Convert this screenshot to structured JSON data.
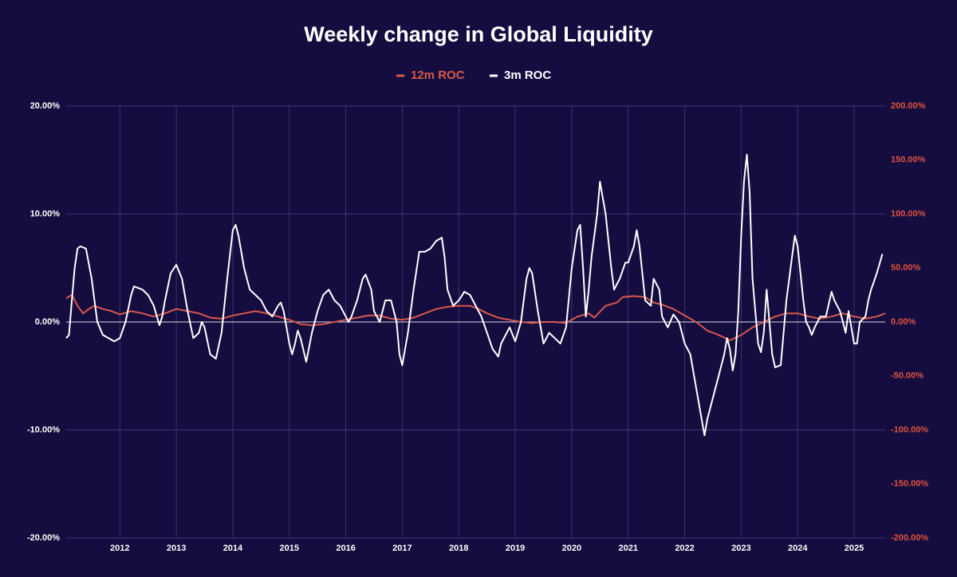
{
  "chart_data": {
    "type": "line",
    "title": "Weekly change in Global Liquidity",
    "background": "#150d3f",
    "grid": true,
    "legend": "top",
    "xlim": [
      2011.05,
      2025.55
    ],
    "xticks": [
      2012,
      2013,
      2014,
      2015,
      2016,
      2017,
      2018,
      2019,
      2020,
      2021,
      2022,
      2023,
      2024,
      2025
    ],
    "ylim": [
      -20,
      20
    ],
    "yticks": [
      {
        "value": -20,
        "label": "-20.00%"
      },
      {
        "value": -10,
        "label": "-10.00%"
      },
      {
        "value": 0,
        "label": "0.00%"
      },
      {
        "value": 10,
        "label": "10.00%"
      },
      {
        "value": 20,
        "label": "20.00%"
      }
    ],
    "y2lim": [
      -200,
      200
    ],
    "y2ticks": [
      {
        "value": -200,
        "label": "-200.00%"
      },
      {
        "value": -150,
        "label": "-150.00%"
      },
      {
        "value": -100,
        "label": "-100.00%"
      },
      {
        "value": -50,
        "label": "-50.00%"
      },
      {
        "value": 0,
        "label": "0.00%"
      },
      {
        "value": 50,
        "label": "50.00%"
      },
      {
        "value": 100,
        "label": "100.00%"
      },
      {
        "value": 150,
        "label": "150.00%"
      },
      {
        "value": 200,
        "label": "200.00%"
      }
    ],
    "y2color": "#e0533f",
    "series": [
      {
        "name": "12m ROC",
        "color": "#d9574b",
        "axis": "y2",
        "x": [
          2011.05,
          2011.15,
          2011.25,
          2011.35,
          2011.45,
          2011.55,
          2011.7,
          2011.85,
          2012.0,
          2012.2,
          2012.4,
          2012.6,
          2012.8,
          2013.0,
          2013.2,
          2013.4,
          2013.6,
          2013.8,
          2014.0,
          2014.2,
          2014.4,
          2014.6,
          2014.8,
          2015.0,
          2015.2,
          2015.4,
          2015.6,
          2015.8,
          2016.0,
          2016.2,
          2016.4,
          2016.6,
          2016.8,
          2017.0,
          2017.2,
          2017.4,
          2017.6,
          2017.8,
          2018.0,
          2018.2,
          2018.35,
          2018.5,
          2018.7,
          2018.9,
          2019.1,
          2019.3,
          2019.5,
          2019.7,
          2019.9,
          2020.1,
          2020.3,
          2020.4,
          2020.6,
          2020.8,
          2020.9,
          2021.1,
          2021.3,
          2021.45,
          2021.6,
          2021.8,
          2022.0,
          2022.2,
          2022.4,
          2022.6,
          2022.8,
          2023.0,
          2023.2,
          2023.4,
          2023.6,
          2023.8,
          2024.0,
          2024.2,
          2024.4,
          2024.6,
          2024.8,
          2025.0,
          2025.2,
          2025.4,
          2025.55
        ],
        "values": [
          22,
          25,
          15,
          8,
          12,
          15,
          12,
          10,
          7,
          10,
          8,
          5,
          8,
          12,
          10,
          8,
          4,
          3,
          6,
          8,
          10,
          8,
          5,
          2,
          -2,
          -3,
          -2,
          0,
          2,
          4,
          6,
          6,
          3,
          2,
          4,
          8,
          12,
          14,
          15,
          15,
          12,
          8,
          4,
          2,
          0,
          -1,
          0,
          0,
          -1,
          5,
          8,
          4,
          15,
          18,
          23,
          24,
          23,
          18,
          16,
          12,
          6,
          0,
          -8,
          -12,
          -17,
          -12,
          -5,
          0,
          5,
          8,
          8,
          5,
          3,
          5,
          8,
          5,
          3,
          5,
          8
        ]
      },
      {
        "name": "3m ROC",
        "color": "#ffffff",
        "x": [
          2011.05,
          2011.1,
          2011.15,
          2011.2,
          2011.25,
          2011.3,
          2011.4,
          2011.5,
          2011.6,
          2011.7,
          2011.8,
          2011.9,
          2012.0,
          2012.1,
          2012.2,
          2012.25,
          2012.4,
          2012.5,
          2012.6,
          2012.7,
          2012.75,
          2012.8,
          2012.9,
          2013.0,
          2013.1,
          2013.2,
          2013.3,
          2013.4,
          2013.45,
          2013.5,
          2013.6,
          2013.7,
          2013.8,
          2013.9,
          2014.0,
          2014.05,
          2014.1,
          2014.2,
          2014.3,
          2014.4,
          2014.5,
          2014.6,
          2014.7,
          2014.8,
          2014.85,
          2014.9,
          2015.0,
          2015.05,
          2015.1,
          2015.15,
          2015.2,
          2015.3,
          2015.4,
          2015.5,
          2015.6,
          2015.7,
          2015.8,
          2015.9,
          2016.0,
          2016.05,
          2016.1,
          2016.2,
          2016.3,
          2016.35,
          2016.45,
          2016.5,
          2016.6,
          2016.7,
          2016.8,
          2016.9,
          2016.95,
          2017.0,
          2017.1,
          2017.2,
          2017.3,
          2017.4,
          2017.5,
          2017.6,
          2017.7,
          2017.75,
          2017.8,
          2017.9,
          2018.0,
          2018.1,
          2018.2,
          2018.3,
          2018.4,
          2018.5,
          2018.6,
          2018.7,
          2018.75,
          2018.8,
          2018.9,
          2019.0,
          2019.1,
          2019.2,
          2019.25,
          2019.3,
          2019.4,
          2019.5,
          2019.6,
          2019.7,
          2019.8,
          2019.9,
          2020.0,
          2020.1,
          2020.15,
          2020.2,
          2020.25,
          2020.3,
          2020.35,
          2020.45,
          2020.5,
          2020.6,
          2020.7,
          2020.75,
          2020.85,
          2020.95,
          2021.0,
          2021.1,
          2021.15,
          2021.2,
          2021.3,
          2021.4,
          2021.45,
          2021.55,
          2021.6,
          2021.7,
          2021.8,
          2021.9,
          2022.0,
          2022.1,
          2022.2,
          2022.3,
          2022.35,
          2022.4,
          2022.5,
          2022.6,
          2022.7,
          2022.75,
          2022.8,
          2022.85,
          2022.9,
          2022.95,
          2023.0,
          2023.05,
          2023.1,
          2023.15,
          2023.2,
          2023.3,
          2023.35,
          2023.4,
          2023.45,
          2023.5,
          2023.55,
          2023.6,
          2023.7,
          2023.8,
          2023.9,
          2023.95,
          2024.0,
          2024.1,
          2024.15,
          2024.2,
          2024.25,
          2024.3,
          2024.4,
          2024.5,
          2024.6,
          2024.65,
          2024.7,
          2024.75,
          2024.8,
          2024.85,
          2024.9,
          2025.0,
          2025.05,
          2025.1,
          2025.2,
          2025.25,
          2025.3,
          2025.4,
          2025.5
        ],
        "values": [
          -1.5,
          -1.2,
          2,
          5,
          6.8,
          7,
          6.8,
          4,
          0,
          -1.2,
          -1.5,
          -1.8,
          -1.5,
          0,
          2.5,
          3.3,
          3,
          2.5,
          1.5,
          -0.3,
          0.5,
          2,
          4.5,
          5.3,
          4,
          1,
          -1.5,
          -1,
          0,
          -0.5,
          -3,
          -3.4,
          -1,
          4,
          8.5,
          9,
          8,
          5,
          3,
          2.5,
          2,
          1,
          0.5,
          1.5,
          1.8,
          1,
          -2,
          -3,
          -2,
          -0.8,
          -1.5,
          -3.7,
          -1,
          1,
          2.5,
          3,
          2,
          1.5,
          0.5,
          0,
          0.5,
          2,
          4,
          4.4,
          3,
          1,
          0,
          2,
          2,
          0,
          -3,
          -4,
          -1,
          3,
          6.5,
          6.5,
          6.8,
          7.5,
          7.8,
          6,
          3,
          1.5,
          2,
          2.8,
          2.5,
          1.5,
          0.5,
          -1,
          -2.5,
          -3.2,
          -2,
          -1.5,
          -0.5,
          -1.8,
          0,
          4,
          5,
          4.5,
          1,
          -2,
          -1,
          -1.5,
          -2,
          -0.5,
          5,
          8.5,
          9,
          5,
          0.5,
          3,
          6,
          10,
          13,
          10,
          5,
          3,
          4,
          5.5,
          5.5,
          7,
          8.5,
          7,
          2,
          1.5,
          4,
          3,
          0.5,
          -0.5,
          0.7,
          0,
          -2,
          -3,
          -6,
          -9,
          -10.5,
          -9,
          -7,
          -5,
          -3,
          -1.5,
          -2.5,
          -4.5,
          -3,
          1,
          8,
          13,
          15.5,
          12,
          4,
          -2,
          -2.8,
          -1,
          3,
          0,
          -3,
          -4.2,
          -4,
          2,
          6,
          8,
          7,
          2,
          0,
          -0.5,
          -1.2,
          -0.5,
          0.5,
          0.5,
          2.8,
          2,
          1.5,
          1,
          0,
          -1,
          1,
          -2,
          -2,
          0,
          0.5,
          2,
          3,
          4.5,
          6.3
        ]
      }
    ]
  }
}
